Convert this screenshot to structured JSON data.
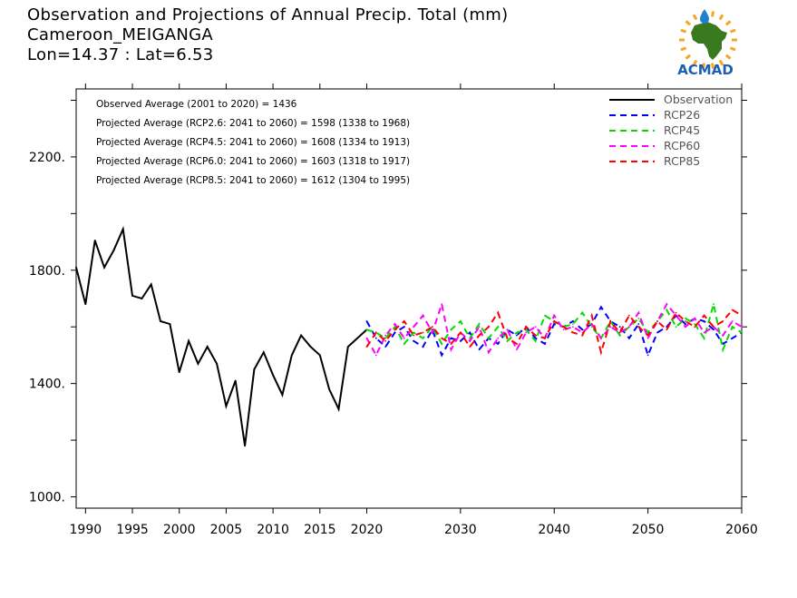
{
  "title": {
    "line1": "Observation and Projections of Annual Precip. Total (mm)",
    "line2": "Cameroon_MEIGANGA",
    "line3": "Lon=14.37 : Lat=6.53"
  },
  "logo": {
    "text": "ACMAD",
    "colors": {
      "africa": "#3a7a1e",
      "sun": "#f5a623",
      "drop": "#1f7fd1",
      "text": "#1a5fb0"
    }
  },
  "annotations": [
    "Observed Average (2001 to 2020) = 1436",
    "Projected Average (RCP2.6: 2041 to 2060) = 1598 (1338 to 1968)",
    "Projected Average (RCP4.5: 2041 to 2060) = 1608 (1334 to 1913)",
    "Projected Average (RCP6.0: 2041 to 2060) = 1603 (1318 to 1917)",
    "Projected Average (RCP8.5: 2041 to 2060) = 1612 (1304 to 1995)"
  ],
  "chart_data": {
    "type": "line",
    "xlim": [
      1989,
      2060
    ],
    "ylim": [
      960,
      2440
    ],
    "grid": false,
    "legend_position": "top-right",
    "x_ticks": [
      {
        "value": 1990,
        "label": "1990"
      },
      {
        "value": 1995,
        "label": "1995"
      },
      {
        "value": 2000,
        "label": "2000"
      },
      {
        "value": 2005,
        "label": "2005"
      },
      {
        "value": 2010,
        "label": "2010"
      },
      {
        "value": 2015,
        "label": "2015"
      },
      {
        "value": 2020,
        "label": "2020"
      },
      {
        "value": 2030,
        "label": "2030"
      },
      {
        "value": 2040,
        "label": "2040"
      },
      {
        "value": 2050,
        "label": "2050"
      },
      {
        "value": 2060,
        "label": "2060"
      }
    ],
    "y_ticks": [
      {
        "value": 1000,
        "label": "1000."
      },
      {
        "value": 1400,
        "label": "1400."
      },
      {
        "value": 1800,
        "label": "1800."
      },
      {
        "value": 2200,
        "label": "2200."
      }
    ],
    "series": [
      {
        "name": "Observation",
        "color": "#000000",
        "dashed": false,
        "x": [
          1989,
          1990,
          1991,
          1992,
          1993,
          1994,
          1995,
          1996,
          1997,
          1998,
          1999,
          2000,
          2001,
          2002,
          2003,
          2004,
          2005,
          2006,
          2007,
          2008,
          2009,
          2010,
          2011,
          2012,
          2013,
          2014,
          2015,
          2016,
          2017,
          2018,
          2019,
          2020
        ],
        "y": [
          1810,
          1680,
          1905,
          1810,
          1870,
          1945,
          1710,
          1700,
          1750,
          1620,
          1610,
          1440,
          1550,
          1470,
          1530,
          1470,
          1320,
          1410,
          1180,
          1450,
          1510,
          1430,
          1360,
          1500,
          1570,
          1530,
          1500,
          1380,
          1310,
          1530,
          1560,
          1590
        ]
      },
      {
        "name": "RCP26",
        "color": "#0000ff",
        "dashed": true,
        "x": [
          2020,
          2021,
          2022,
          2023,
          2024,
          2025,
          2026,
          2027,
          2028,
          2029,
          2030,
          2031,
          2032,
          2033,
          2034,
          2035,
          2036,
          2037,
          2038,
          2039,
          2040,
          2041,
          2042,
          2043,
          2044,
          2045,
          2046,
          2047,
          2048,
          2049,
          2050,
          2051,
          2052,
          2053,
          2054,
          2055,
          2056,
          2057,
          2058,
          2059,
          2060
        ],
        "y": [
          1620,
          1560,
          1530,
          1580,
          1600,
          1550,
          1530,
          1590,
          1500,
          1560,
          1550,
          1580,
          1520,
          1560,
          1540,
          1590,
          1570,
          1600,
          1560,
          1540,
          1610,
          1600,
          1620,
          1590,
          1610,
          1670,
          1620,
          1600,
          1560,
          1610,
          1500,
          1580,
          1600,
          1640,
          1610,
          1630,
          1620,
          1590,
          1540,
          1560,
          1580
        ]
      },
      {
        "name": "RCP45",
        "color": "#00dd00",
        "dashed": true,
        "x": [
          2020,
          2021,
          2022,
          2023,
          2024,
          2025,
          2026,
          2027,
          2028,
          2029,
          2030,
          2031,
          2032,
          2033,
          2034,
          2035,
          2036,
          2037,
          2038,
          2039,
          2040,
          2041,
          2042,
          2043,
          2044,
          2045,
          2046,
          2047,
          2048,
          2049,
          2050,
          2051,
          2052,
          2053,
          2054,
          2055,
          2056,
          2057,
          2058,
          2059,
          2060
        ],
        "y": [
          1590,
          1580,
          1560,
          1600,
          1540,
          1580,
          1560,
          1600,
          1540,
          1590,
          1620,
          1560,
          1610,
          1560,
          1600,
          1550,
          1580,
          1590,
          1550,
          1640,
          1620,
          1600,
          1610,
          1650,
          1600,
          1560,
          1620,
          1570,
          1600,
          1630,
          1580,
          1620,
          1660,
          1600,
          1630,
          1610,
          1560,
          1680,
          1520,
          1600,
          1580
        ]
      },
      {
        "name": "RCP60",
        "color": "#ff00ff",
        "dashed": true,
        "x": [
          2020,
          2021,
          2022,
          2023,
          2024,
          2025,
          2026,
          2027,
          2028,
          2029,
          2030,
          2031,
          2032,
          2033,
          2034,
          2035,
          2036,
          2037,
          2038,
          2039,
          2040,
          2041,
          2042,
          2043,
          2044,
          2045,
          2046,
          2047,
          2048,
          2049,
          2050,
          2051,
          2052,
          2053,
          2054,
          2055,
          2056,
          2057,
          2058,
          2059,
          2060
        ],
        "y": [
          1560,
          1500,
          1570,
          1610,
          1560,
          1600,
          1640,
          1580,
          1680,
          1520,
          1580,
          1550,
          1600,
          1510,
          1560,
          1590,
          1520,
          1580,
          1600,
          1560,
          1640,
          1590,
          1600,
          1580,
          1610,
          1560,
          1600,
          1580,
          1600,
          1650,
          1560,
          1620,
          1680,
          1640,
          1600,
          1630,
          1580,
          1600,
          1570,
          1620,
          1600
        ]
      },
      {
        "name": "RCP85",
        "color": "#ff0000",
        "dashed": true,
        "x": [
          2020,
          2021,
          2022,
          2023,
          2024,
          2025,
          2026,
          2027,
          2028,
          2029,
          2030,
          2031,
          2032,
          2033,
          2034,
          2035,
          2036,
          2037,
          2038,
          2039,
          2040,
          2041,
          2042,
          2043,
          2044,
          2045,
          2046,
          2047,
          2048,
          2049,
          2050,
          2051,
          2052,
          2053,
          2054,
          2055,
          2056,
          2057,
          2058,
          2059,
          2060
        ],
        "y": [
          1530,
          1580,
          1550,
          1590,
          1620,
          1570,
          1580,
          1600,
          1560,
          1540,
          1580,
          1530,
          1570,
          1600,
          1650,
          1560,
          1540,
          1600,
          1570,
          1560,
          1620,
          1600,
          1580,
          1570,
          1640,
          1510,
          1620,
          1580,
          1640,
          1600,
          1570,
          1620,
          1590,
          1650,
          1620,
          1600,
          1640,
          1600,
          1620,
          1660,
          1640
        ]
      }
    ]
  }
}
